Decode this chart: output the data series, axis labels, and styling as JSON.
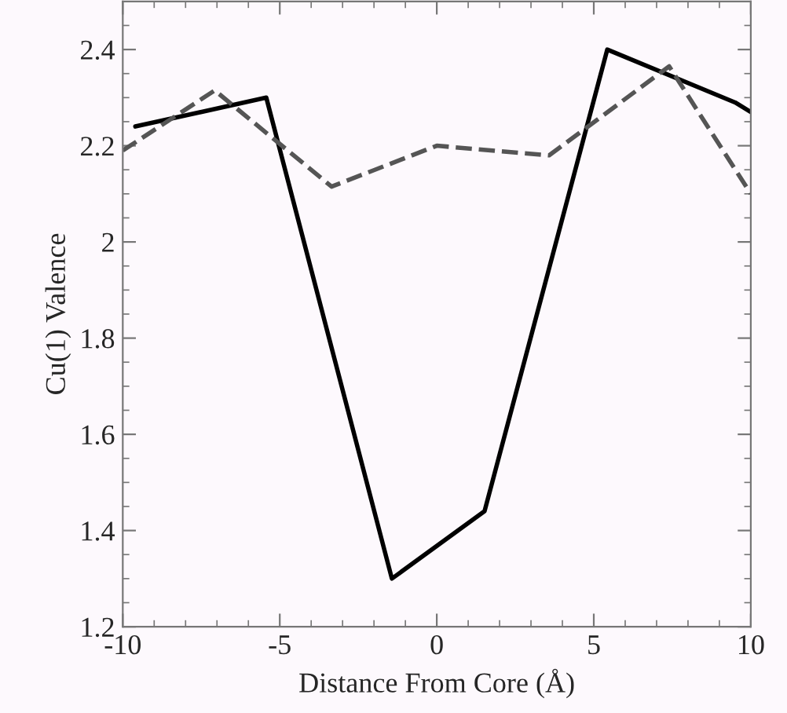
{
  "chart_data": {
    "type": "line",
    "xlabel": "Distance From Core (Å)",
    "ylabel": "Cu(1) Valence",
    "xlim": [
      -10,
      10
    ],
    "ylim": [
      1.2,
      2.5
    ],
    "xticks": [
      -10,
      -5,
      0,
      5,
      10
    ],
    "yticks": [
      1.2,
      1.4,
      1.6,
      1.8,
      2,
      2.2,
      2.4
    ],
    "grid": false,
    "legend": false,
    "series": [
      {
        "color": "#000000",
        "line_style": "solid",
        "x": [
          -9.6,
          -5.43,
          -1.43,
          1.52,
          5.43,
          9.5,
          10
        ],
        "values": [
          2.24,
          2.3,
          1.3,
          1.44,
          2.4,
          2.29,
          2.27
        ]
      },
      {
        "color": "#555555",
        "line_style": "dashed",
        "x": [
          -10,
          -7.07,
          -3.35,
          0,
          3.58,
          7.4,
          10
        ],
        "values": [
          2.19,
          2.315,
          2.115,
          2.2,
          2.18,
          2.365,
          2.1
        ]
      }
    ]
  }
}
